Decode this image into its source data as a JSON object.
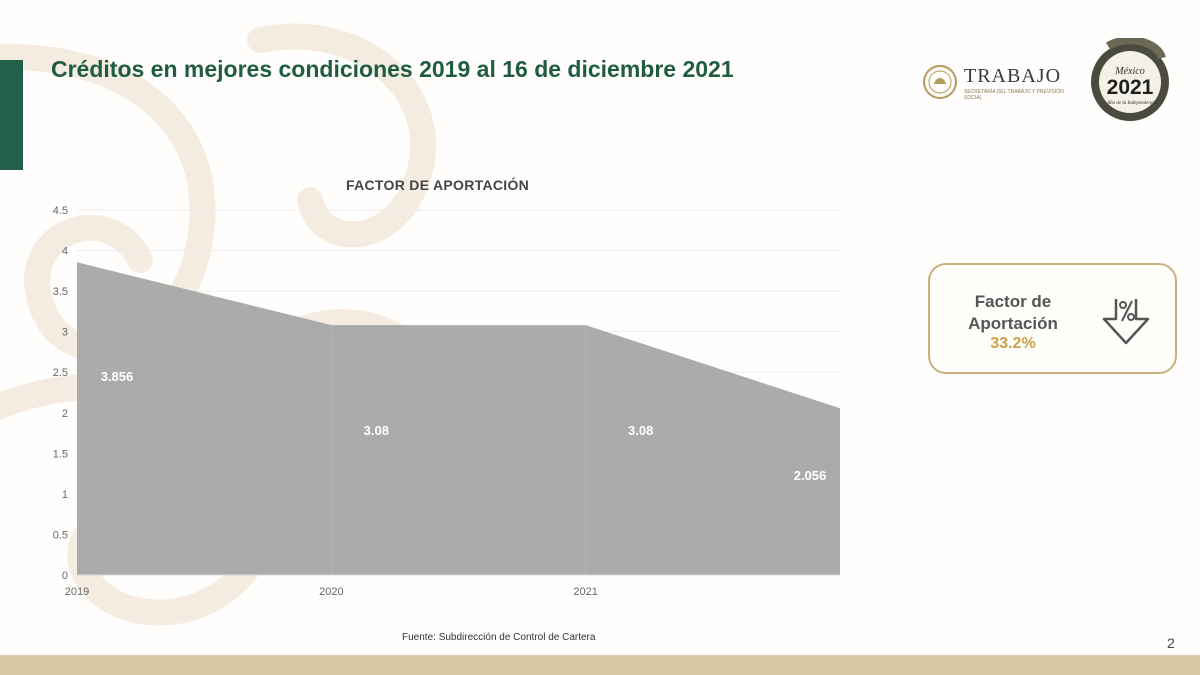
{
  "slide": {
    "title": "Créditos en mejores condiciones 2019 al 16 de diciembre 2021",
    "source": "Fuente: Subdirección de Control de Cartera",
    "page_number": "2"
  },
  "logos": {
    "trabajo_word": "TRABAJO",
    "trabajo_sub": "SECRETARÍA DEL TRABAJO Y PREVISIÓN SOCIAL",
    "year_logo_line1": "México",
    "year_logo_line2": "2021",
    "year_logo_line3": "Año de la Independencia"
  },
  "kpi": {
    "label": "Factor de Aportación",
    "value": "33.2%",
    "icon": "percent-down-arrow-icon"
  },
  "colors": {
    "title_green": "#1f5c43",
    "area_fill": "#a6a6a6",
    "gold": "#c9a24a",
    "kpi_border": "#c9b07b",
    "bottom_band": "#d8c8a4"
  },
  "chart_data": {
    "type": "area",
    "title": "FACTOR DE APORTACIÓN",
    "x": [
      "2019",
      "2020",
      "2021",
      ""
    ],
    "x_tick_labels": [
      "2019",
      "2020",
      "2021"
    ],
    "values": [
      3.856,
      3.08,
      3.08,
      2.056
    ],
    "data_labels": [
      "3.856",
      "3.08",
      "3.08",
      "2.056"
    ],
    "ylim": [
      0,
      4.5
    ],
    "y_ticks": [
      "0",
      "0.5",
      "1",
      "1.5",
      "2",
      "2.5",
      "3",
      "3.5",
      "4",
      "4.5"
    ],
    "grid": true
  }
}
